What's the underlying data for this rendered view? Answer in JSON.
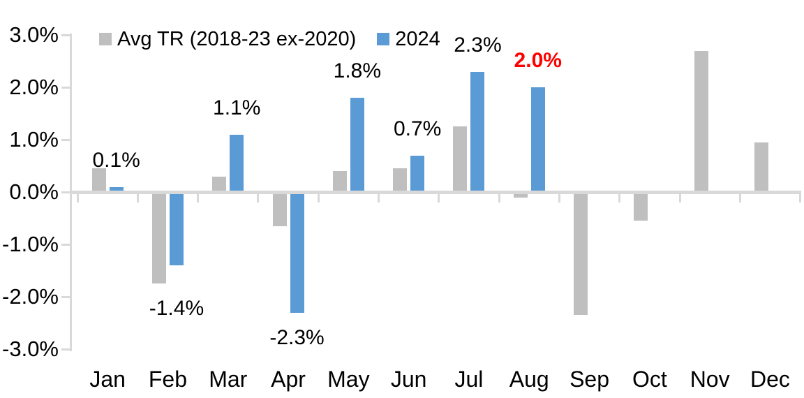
{
  "chart_data": {
    "type": "bar",
    "title": "",
    "categories": [
      "Jan",
      "Feb",
      "Mar",
      "Apr",
      "May",
      "Jun",
      "Jul",
      "Aug",
      "Sep",
      "Oct",
      "Nov",
      "Dec"
    ],
    "series": [
      {
        "name": "Avg TR (2018-23 ex-2020)",
        "color": "#BFBFBF",
        "values": [
          0.45,
          -1.75,
          0.3,
          -0.65,
          0.4,
          0.45,
          1.25,
          -0.1,
          -2.35,
          -0.55,
          2.7,
          0.95
        ]
      },
      {
        "name": "2024",
        "color": "#5B9BD5",
        "values": [
          0.1,
          -1.4,
          1.1,
          -2.3,
          1.8,
          0.7,
          2.3,
          2.0,
          null,
          null,
          null,
          null
        ],
        "data_labels": [
          "0.1%",
          "-1.4%",
          "1.1%",
          "-2.3%",
          "1.8%",
          "0.7%",
          "2.3%",
          "2.0%",
          null,
          null,
          null,
          null
        ],
        "data_label_colors": [
          "#000000",
          "#000000",
          "#000000",
          "#000000",
          "#000000",
          "#000000",
          "#000000",
          "#FF0000",
          null,
          null,
          null,
          null
        ],
        "data_label_bold": [
          false,
          false,
          false,
          false,
          false,
          false,
          false,
          true,
          null,
          null,
          null,
          null
        ]
      }
    ],
    "ylim": [
      -3.0,
      3.0
    ],
    "ytick_step": 1.0,
    "y_tick_labels": [
      "3.0%",
      "2.0%",
      "1.0%",
      "0.0%",
      "-1.0%",
      "-2.0%",
      "-3.0%"
    ],
    "values_unit": "%",
    "grid": false,
    "legend_position": "top-left",
    "axis_color": "#D9D9D9",
    "background_color": "#FFFFFF"
  }
}
